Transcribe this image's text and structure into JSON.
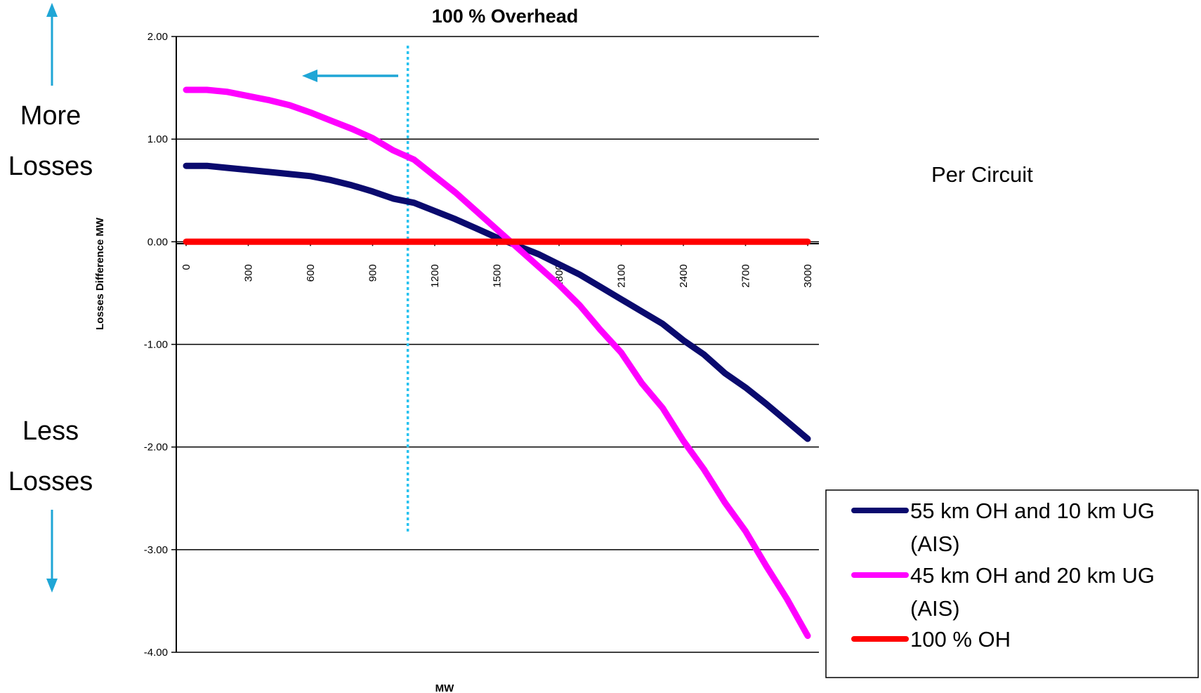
{
  "chart_data": {
    "type": "line",
    "title": "100 % Overhead",
    "xlabel": "MW",
    "ylabel": "Losses Difference  MW",
    "x": [
      0,
      100,
      200,
      300,
      400,
      500,
      600,
      700,
      800,
      900,
      1000,
      1100,
      1200,
      1300,
      1400,
      1500,
      1600,
      1700,
      1800,
      1900,
      2000,
      2100,
      2200,
      2300,
      2400,
      2500,
      2600,
      2700,
      2800,
      2900,
      3000
    ],
    "x_ticks": [
      "0",
      "300",
      "600",
      "900",
      "1200",
      "1500",
      "1800",
      "2100",
      "2400",
      "2700",
      "3000"
    ],
    "y_ticks": [
      "2.00",
      "1.00",
      "0.00",
      "-1.00",
      "-2.00",
      "-3.00",
      "-4.00"
    ],
    "xlim": [
      0,
      3000
    ],
    "ylim": [
      -4,
      2
    ],
    "grid": "horizontal",
    "legend_position": "bottom-right",
    "series": [
      {
        "name": "55 km OH and 10 km UG (AIS)",
        "color": "#0a0a6e",
        "values": [
          0.74,
          0.74,
          0.72,
          0.7,
          0.68,
          0.66,
          0.64,
          0.6,
          0.55,
          0.49,
          0.42,
          0.38,
          0.3,
          0.22,
          0.13,
          0.04,
          -0.04,
          -0.12,
          -0.22,
          -0.32,
          -0.44,
          -0.56,
          -0.68,
          -0.8,
          -0.96,
          -1.1,
          -1.28,
          -1.42,
          -1.58,
          -1.75,
          -1.92
        ]
      },
      {
        "name": "45 km OH and 20 km UG (AIS)",
        "color": "#ff00ff",
        "values": [
          1.48,
          1.48,
          1.46,
          1.42,
          1.38,
          1.33,
          1.26,
          1.18,
          1.1,
          1.01,
          0.89,
          0.8,
          0.64,
          0.48,
          0.3,
          0.12,
          -0.06,
          -0.24,
          -0.42,
          -0.62,
          -0.86,
          -1.08,
          -1.38,
          -1.62,
          -1.94,
          -2.22,
          -2.54,
          -2.82,
          -3.16,
          -3.48,
          -3.84
        ]
      },
      {
        "name": "100 % OH",
        "color": "#ff0000",
        "values": [
          0,
          0,
          0,
          0,
          0,
          0,
          0,
          0,
          0,
          0,
          0,
          0,
          0,
          0,
          0,
          0,
          0,
          0,
          0,
          0,
          0,
          0,
          0,
          0,
          0,
          0,
          0,
          0,
          0,
          0,
          0
        ]
      }
    ],
    "reference_line": {
      "x": 1070,
      "color": "#29c3f0"
    },
    "annotations": {
      "more_1": "More",
      "more_2": "Losses",
      "less_1": "Less",
      "less_2": "Losses",
      "per_circuit": "Per Circuit"
    },
    "arrow_color": "#1fa6d6"
  }
}
